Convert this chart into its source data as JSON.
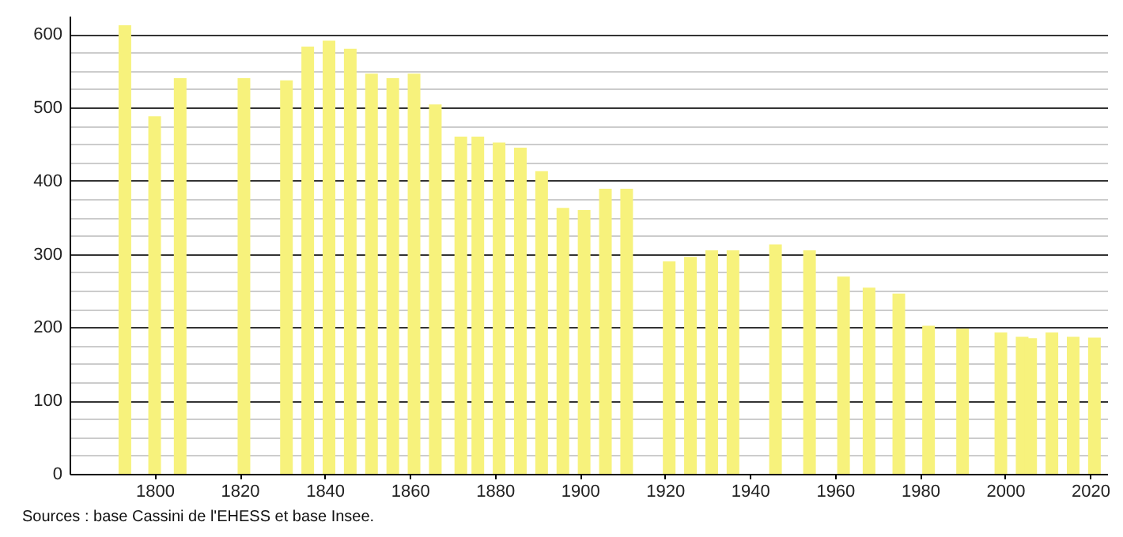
{
  "chart_data": {
    "type": "bar",
    "x": [
      1793,
      1800,
      1806,
      1821,
      1831,
      1836,
      1841,
      1846,
      1851,
      1856,
      1861,
      1866,
      1872,
      1876,
      1881,
      1886,
      1891,
      1896,
      1901,
      1906,
      1911,
      1921,
      1926,
      1931,
      1936,
      1946,
      1954,
      1962,
      1968,
      1975,
      1982,
      1990,
      1999,
      2004,
      2006,
      2011,
      2016,
      2021
    ],
    "values": [
      612,
      488,
      540,
      540,
      537,
      583,
      591,
      580,
      546,
      540,
      546,
      504,
      460,
      460,
      452,
      445,
      413,
      363,
      360,
      389,
      389,
      290,
      296,
      305,
      305,
      313,
      305,
      269,
      254,
      246,
      202,
      198,
      193,
      187,
      185,
      193,
      187,
      186
    ],
    "color": "#f7f27c",
    "xlim": [
      1780,
      2024
    ],
    "xticks": [
      1800,
      1820,
      1840,
      1860,
      1880,
      1900,
      1920,
      1940,
      1960,
      1980,
      2000,
      2020
    ],
    "ylim": [
      0,
      625
    ],
    "yticks": [
      0,
      {
        "value": 25,
        "label": null
      },
      {
        "value": 50,
        "label": null
      },
      {
        "value": 75,
        "label": null
      },
      100,
      {
        "value": 125,
        "label": null
      },
      {
        "value": 150,
        "label": null
      },
      {
        "value": 175,
        "label": null
      },
      200,
      {
        "value": 225,
        "label": null
      },
      {
        "value": 250,
        "label": null
      },
      {
        "value": 275,
        "label": null
      },
      300,
      {
        "value": 325,
        "label": null
      },
      {
        "value": 350,
        "label": null
      },
      {
        "value": 375,
        "label": null
      },
      400,
      {
        "value": 425,
        "label": null
      },
      {
        "value": 450,
        "label": null
      },
      {
        "value": 475,
        "label": null
      },
      500,
      {
        "value": 525,
        "label": null
      },
      {
        "value": 550,
        "label": null
      },
      {
        "value": 575,
        "label": null
      },
      600
    ],
    "grid": "y",
    "annotations": [
      "Sources : base Cassini de l'EHESS et base Insee."
    ]
  }
}
